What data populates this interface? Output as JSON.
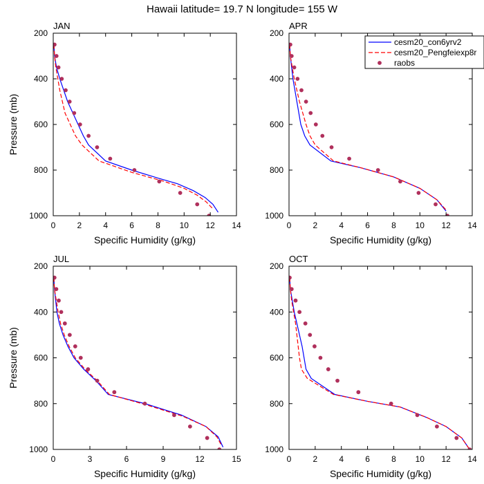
{
  "figure": {
    "title": "Hawaii  latitude= 19.7 N longitude= 155 W"
  },
  "legend": {
    "placement": "top-right",
    "entries": [
      {
        "label": "cesm20_con6yrv2",
        "color": "#0000ff",
        "style": "solid"
      },
      {
        "label": "cesm20_Pengfeiexp8r",
        "color": "#ff0000",
        "style": "dashed"
      },
      {
        "label": "raobs",
        "color": "#b0305c",
        "style": "marker"
      }
    ]
  },
  "chart_data": [
    {
      "type": "line",
      "title": "JAN",
      "xlabel": "Specific Humidity (g/kg)",
      "ylabel": "Pressure (mb)",
      "xlim": [
        0,
        14
      ],
      "ylim": [
        1000,
        200
      ],
      "y_inverted": true,
      "xticks": [
        0,
        2,
        4,
        6,
        8,
        10,
        12,
        14
      ],
      "yticks": [
        200,
        400,
        600,
        800,
        1000
      ],
      "series": [
        {
          "name": "cesm20_con6yrv2",
          "points": [
            [
              0.05,
              250
            ],
            [
              0.1,
              300
            ],
            [
              0.25,
              350
            ],
            [
              0.5,
              400
            ],
            [
              0.8,
              450
            ],
            [
              1.1,
              500
            ],
            [
              1.5,
              550
            ],
            [
              1.9,
              600
            ],
            [
              2.3,
              650
            ],
            [
              2.7,
              690
            ],
            [
              4.0,
              760
            ],
            [
              6.0,
              800
            ],
            [
              8.0,
              835
            ],
            [
              9.5,
              860
            ],
            [
              10.7,
              890
            ],
            [
              11.6,
              920
            ],
            [
              12.2,
              950
            ],
            [
              12.6,
              985
            ]
          ]
        },
        {
          "name": "cesm20_Pengfeiexp8r",
          "points": [
            [
              0.05,
              250
            ],
            [
              0.1,
              300
            ],
            [
              0.2,
              350
            ],
            [
              0.35,
              400
            ],
            [
              0.5,
              450
            ],
            [
              0.7,
              500
            ],
            [
              0.9,
              550
            ],
            [
              1.3,
              600
            ],
            [
              1.7,
              650
            ],
            [
              2.2,
              690
            ],
            [
              3.5,
              760
            ],
            [
              6.0,
              810
            ],
            [
              8.5,
              850
            ],
            [
              10.0,
              880
            ],
            [
              11.0,
              910
            ],
            [
              11.7,
              940
            ],
            [
              12.2,
              970
            ]
          ]
        },
        {
          "name": "raobs",
          "points": [
            [
              0.1,
              250
            ],
            [
              0.25,
              300
            ],
            [
              0.4,
              350
            ],
            [
              0.65,
              400
            ],
            [
              0.95,
              450
            ],
            [
              1.25,
              500
            ],
            [
              1.6,
              550
            ],
            [
              2.05,
              600
            ],
            [
              2.7,
              650
            ],
            [
              3.35,
              700
            ],
            [
              4.35,
              750
            ],
            [
              6.2,
              800
            ],
            [
              8.1,
              850
            ],
            [
              9.7,
              900
            ],
            [
              11.0,
              950
            ],
            [
              11.9,
              1000
            ]
          ]
        }
      ]
    },
    {
      "type": "line",
      "title": "APR",
      "xlabel": "Specific Humidity (g/kg)",
      "ylabel": "",
      "xlim": [
        0,
        14
      ],
      "ylim": [
        1000,
        200
      ],
      "y_inverted": true,
      "xticks": [
        0,
        2,
        4,
        6,
        8,
        10,
        12,
        14
      ],
      "yticks": [
        200,
        400,
        600,
        800,
        1000
      ],
      "series": [
        {
          "name": "cesm20_con6yrv2",
          "points": [
            [
              0.05,
              250
            ],
            [
              0.1,
              300
            ],
            [
              0.2,
              350
            ],
            [
              0.3,
              400
            ],
            [
              0.45,
              450
            ],
            [
              0.6,
              500
            ],
            [
              0.75,
              550
            ],
            [
              0.9,
              600
            ],
            [
              1.2,
              650
            ],
            [
              1.6,
              690
            ],
            [
              3.2,
              760
            ],
            [
              5.5,
              790
            ],
            [
              8.0,
              830
            ],
            [
              10.0,
              880
            ],
            [
              11.3,
              930
            ],
            [
              12.0,
              980
            ]
          ]
        },
        {
          "name": "cesm20_Pengfeiexp8r",
          "points": [
            [
              0.05,
              250
            ],
            [
              0.1,
              300
            ],
            [
              0.25,
              350
            ],
            [
              0.4,
              400
            ],
            [
              0.6,
              450
            ],
            [
              0.8,
              500
            ],
            [
              1.05,
              550
            ],
            [
              1.3,
              600
            ],
            [
              1.6,
              650
            ],
            [
              2.0,
              690
            ],
            [
              3.4,
              760
            ],
            [
              5.5,
              790
            ],
            [
              8.0,
              830
            ],
            [
              10.0,
              880
            ],
            [
              11.3,
              930
            ],
            [
              12.0,
              975
            ]
          ]
        },
        {
          "name": "raobs",
          "points": [
            [
              0.1,
              250
            ],
            [
              0.2,
              300
            ],
            [
              0.4,
              350
            ],
            [
              0.65,
              400
            ],
            [
              0.95,
              450
            ],
            [
              1.3,
              500
            ],
            [
              1.65,
              550
            ],
            [
              2.05,
              600
            ],
            [
              2.55,
              650
            ],
            [
              3.25,
              700
            ],
            [
              4.6,
              750
            ],
            [
              6.8,
              800
            ],
            [
              8.5,
              850
            ],
            [
              9.9,
              900
            ],
            [
              11.2,
              950
            ],
            [
              12.1,
              1000
            ]
          ]
        }
      ]
    },
    {
      "type": "line",
      "title": "JUL",
      "xlabel": "Specific Humidity (g/kg)",
      "ylabel": "Pressure (mb)",
      "xlim": [
        0,
        15
      ],
      "ylim": [
        1000,
        200
      ],
      "y_inverted": true,
      "xticks": [
        0,
        3,
        6,
        9,
        12,
        15
      ],
      "yticks": [
        200,
        400,
        600,
        800,
        1000
      ],
      "series": [
        {
          "name": "cesm20_con6yrv2",
          "points": [
            [
              0.05,
              250
            ],
            [
              0.1,
              300
            ],
            [
              0.2,
              350
            ],
            [
              0.3,
              400
            ],
            [
              0.5,
              450
            ],
            [
              0.8,
              500
            ],
            [
              1.2,
              550
            ],
            [
              1.7,
              600
            ],
            [
              2.5,
              650
            ],
            [
              3.5,
              700
            ],
            [
              4.5,
              760
            ],
            [
              7.5,
              800
            ],
            [
              10.5,
              850
            ],
            [
              12.5,
              900
            ],
            [
              13.5,
              945
            ],
            [
              13.9,
              990
            ]
          ]
        },
        {
          "name": "cesm20_Pengfeiexp8r",
          "points": [
            [
              0.05,
              250
            ],
            [
              0.1,
              300
            ],
            [
              0.25,
              350
            ],
            [
              0.4,
              400
            ],
            [
              0.6,
              450
            ],
            [
              0.9,
              500
            ],
            [
              1.3,
              550
            ],
            [
              1.8,
              600
            ],
            [
              2.6,
              650
            ],
            [
              3.6,
              700
            ],
            [
              4.6,
              760
            ],
            [
              7.6,
              805
            ],
            [
              10.6,
              855
            ],
            [
              12.5,
              900
            ],
            [
              13.4,
              945
            ],
            [
              13.8,
              985
            ]
          ]
        },
        {
          "name": "raobs",
          "points": [
            [
              0.1,
              250
            ],
            [
              0.25,
              300
            ],
            [
              0.45,
              350
            ],
            [
              0.65,
              400
            ],
            [
              0.95,
              450
            ],
            [
              1.35,
              500
            ],
            [
              1.8,
              550
            ],
            [
              2.25,
              600
            ],
            [
              2.85,
              650
            ],
            [
              3.6,
              700
            ],
            [
              5.0,
              750
            ],
            [
              7.5,
              800
            ],
            [
              9.9,
              850
            ],
            [
              11.2,
              900
            ],
            [
              12.6,
              950
            ],
            [
              13.6,
              1000
            ]
          ]
        }
      ]
    },
    {
      "type": "line",
      "title": "OCT",
      "xlabel": "Specific Humidity (g/kg)",
      "ylabel": "",
      "xlim": [
        0,
        14
      ],
      "ylim": [
        1000,
        200
      ],
      "y_inverted": true,
      "xticks": [
        0,
        2,
        4,
        6,
        8,
        10,
        12,
        14
      ],
      "yticks": [
        200,
        400,
        600,
        800,
        1000
      ],
      "series": [
        {
          "name": "cesm20_con6yrv2",
          "points": [
            [
              0.05,
              250
            ],
            [
              0.1,
              300
            ],
            [
              0.25,
              350
            ],
            [
              0.4,
              400
            ],
            [
              0.6,
              450
            ],
            [
              0.8,
              500
            ],
            [
              1.0,
              550
            ],
            [
              1.15,
              600
            ],
            [
              1.3,
              650
            ],
            [
              1.7,
              690
            ],
            [
              3.5,
              760
            ],
            [
              6.0,
              790
            ],
            [
              8.5,
              815
            ],
            [
              10.5,
              860
            ],
            [
              12.0,
              900
            ],
            [
              13.2,
              950
            ],
            [
              13.8,
              1000
            ]
          ]
        },
        {
          "name": "cesm20_Pengfeiexp8r",
          "points": [
            [
              0.05,
              250
            ],
            [
              0.1,
              300
            ],
            [
              0.2,
              350
            ],
            [
              0.35,
              400
            ],
            [
              0.5,
              450
            ],
            [
              0.6,
              500
            ],
            [
              0.7,
              550
            ],
            [
              0.8,
              600
            ],
            [
              0.95,
              650
            ],
            [
              1.4,
              690
            ],
            [
              3.4,
              760
            ],
            [
              6.0,
              790
            ],
            [
              8.5,
              815
            ],
            [
              10.5,
              860
            ],
            [
              12.0,
              900
            ],
            [
              13.2,
              950
            ],
            [
              13.8,
              1000
            ]
          ]
        },
        {
          "name": "raobs",
          "points": [
            [
              0.05,
              250
            ],
            [
              0.2,
              300
            ],
            [
              0.5,
              350
            ],
            [
              0.8,
              400
            ],
            [
              1.25,
              450
            ],
            [
              1.6,
              500
            ],
            [
              1.95,
              550
            ],
            [
              2.4,
              600
            ],
            [
              3.0,
              650
            ],
            [
              3.7,
              700
            ],
            [
              5.3,
              750
            ],
            [
              7.8,
              800
            ],
            [
              9.8,
              850
            ],
            [
              11.3,
              900
            ],
            [
              12.8,
              950
            ],
            [
              13.8,
              1000
            ]
          ]
        }
      ]
    }
  ]
}
